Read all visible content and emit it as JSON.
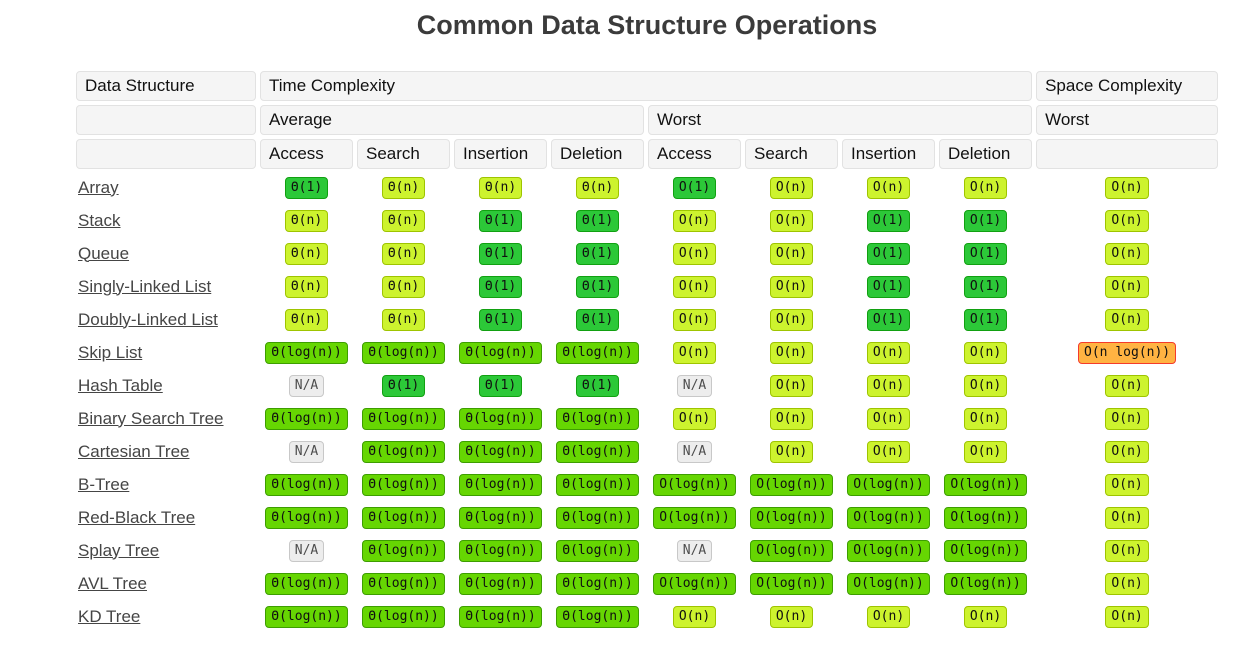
{
  "header": {
    "data_structure": "Data Structure",
    "time_complexity": "Time Complexity",
    "space_complexity": "Space Complexity",
    "average": "Average",
    "worst": "Worst",
    "space_worst": "Worst",
    "operations": [
      "Access",
      "Search",
      "Insertion",
      "Deletion"
    ]
  },
  "colors": {
    "green": {
      "bg": "#2CC838",
      "border": "#11A011",
      "text": "#101010"
    },
    "lightgreen": {
      "bg": "#66D602",
      "border": "#3D9E00",
      "text": "#101010"
    },
    "yellow": {
      "bg": "#CDF32E",
      "border": "#9EC400",
      "text": "#101010"
    },
    "orange": {
      "bg": "#FFB342",
      "border": "#F43B2B",
      "text": "#101010"
    },
    "gray": {
      "bg": "#EDEDED",
      "border": "#C8C8C8",
      "text": "#4D4D4D"
    }
  },
  "chart_data": {
    "type": "table",
    "title": "Common Data Structure Operations",
    "column_groups": [
      "Data Structure",
      "Time Complexity (Average: Access/Search/Insertion/Deletion, Worst: Access/Search/Insertion/Deletion)",
      "Space Complexity (Worst)"
    ],
    "rows": [
      {
        "name": "Array",
        "cells": [
          {
            "text": "Θ(1)",
            "level": "green"
          },
          {
            "text": "Θ(n)",
            "level": "yellow"
          },
          {
            "text": "Θ(n)",
            "level": "yellow"
          },
          {
            "text": "Θ(n)",
            "level": "yellow"
          },
          {
            "text": "O(1)",
            "level": "green"
          },
          {
            "text": "O(n)",
            "level": "yellow"
          },
          {
            "text": "O(n)",
            "level": "yellow"
          },
          {
            "text": "O(n)",
            "level": "yellow"
          },
          {
            "text": "O(n)",
            "level": "yellow"
          }
        ]
      },
      {
        "name": "Stack",
        "cells": [
          {
            "text": "Θ(n)",
            "level": "yellow"
          },
          {
            "text": "Θ(n)",
            "level": "yellow"
          },
          {
            "text": "Θ(1)",
            "level": "green"
          },
          {
            "text": "Θ(1)",
            "level": "green"
          },
          {
            "text": "O(n)",
            "level": "yellow"
          },
          {
            "text": "O(n)",
            "level": "yellow"
          },
          {
            "text": "O(1)",
            "level": "green"
          },
          {
            "text": "O(1)",
            "level": "green"
          },
          {
            "text": "O(n)",
            "level": "yellow"
          }
        ]
      },
      {
        "name": "Queue",
        "cells": [
          {
            "text": "Θ(n)",
            "level": "yellow"
          },
          {
            "text": "Θ(n)",
            "level": "yellow"
          },
          {
            "text": "Θ(1)",
            "level": "green"
          },
          {
            "text": "Θ(1)",
            "level": "green"
          },
          {
            "text": "O(n)",
            "level": "yellow"
          },
          {
            "text": "O(n)",
            "level": "yellow"
          },
          {
            "text": "O(1)",
            "level": "green"
          },
          {
            "text": "O(1)",
            "level": "green"
          },
          {
            "text": "O(n)",
            "level": "yellow"
          }
        ]
      },
      {
        "name": "Singly-Linked List",
        "cells": [
          {
            "text": "Θ(n)",
            "level": "yellow"
          },
          {
            "text": "Θ(n)",
            "level": "yellow"
          },
          {
            "text": "Θ(1)",
            "level": "green"
          },
          {
            "text": "Θ(1)",
            "level": "green"
          },
          {
            "text": "O(n)",
            "level": "yellow"
          },
          {
            "text": "O(n)",
            "level": "yellow"
          },
          {
            "text": "O(1)",
            "level": "green"
          },
          {
            "text": "O(1)",
            "level": "green"
          },
          {
            "text": "O(n)",
            "level": "yellow"
          }
        ]
      },
      {
        "name": "Doubly-Linked List",
        "cells": [
          {
            "text": "Θ(n)",
            "level": "yellow"
          },
          {
            "text": "Θ(n)",
            "level": "yellow"
          },
          {
            "text": "Θ(1)",
            "level": "green"
          },
          {
            "text": "Θ(1)",
            "level": "green"
          },
          {
            "text": "O(n)",
            "level": "yellow"
          },
          {
            "text": "O(n)",
            "level": "yellow"
          },
          {
            "text": "O(1)",
            "level": "green"
          },
          {
            "text": "O(1)",
            "level": "green"
          },
          {
            "text": "O(n)",
            "level": "yellow"
          }
        ]
      },
      {
        "name": "Skip List",
        "cells": [
          {
            "text": "Θ(log(n))",
            "level": "lightgreen"
          },
          {
            "text": "Θ(log(n))",
            "level": "lightgreen"
          },
          {
            "text": "Θ(log(n))",
            "level": "lightgreen"
          },
          {
            "text": "Θ(log(n))",
            "level": "lightgreen"
          },
          {
            "text": "O(n)",
            "level": "yellow"
          },
          {
            "text": "O(n)",
            "level": "yellow"
          },
          {
            "text": "O(n)",
            "level": "yellow"
          },
          {
            "text": "O(n)",
            "level": "yellow"
          },
          {
            "text": "O(n log(n))",
            "level": "orange"
          }
        ]
      },
      {
        "name": "Hash Table",
        "cells": [
          {
            "text": "N/A",
            "level": "gray"
          },
          {
            "text": "Θ(1)",
            "level": "green"
          },
          {
            "text": "Θ(1)",
            "level": "green"
          },
          {
            "text": "Θ(1)",
            "level": "green"
          },
          {
            "text": "N/A",
            "level": "gray"
          },
          {
            "text": "O(n)",
            "level": "yellow"
          },
          {
            "text": "O(n)",
            "level": "yellow"
          },
          {
            "text": "O(n)",
            "level": "yellow"
          },
          {
            "text": "O(n)",
            "level": "yellow"
          }
        ]
      },
      {
        "name": "Binary Search Tree",
        "cells": [
          {
            "text": "Θ(log(n))",
            "level": "lightgreen"
          },
          {
            "text": "Θ(log(n))",
            "level": "lightgreen"
          },
          {
            "text": "Θ(log(n))",
            "level": "lightgreen"
          },
          {
            "text": "Θ(log(n))",
            "level": "lightgreen"
          },
          {
            "text": "O(n)",
            "level": "yellow"
          },
          {
            "text": "O(n)",
            "level": "yellow"
          },
          {
            "text": "O(n)",
            "level": "yellow"
          },
          {
            "text": "O(n)",
            "level": "yellow"
          },
          {
            "text": "O(n)",
            "level": "yellow"
          }
        ]
      },
      {
        "name": "Cartesian Tree",
        "cells": [
          {
            "text": "N/A",
            "level": "gray"
          },
          {
            "text": "Θ(log(n))",
            "level": "lightgreen"
          },
          {
            "text": "Θ(log(n))",
            "level": "lightgreen"
          },
          {
            "text": "Θ(log(n))",
            "level": "lightgreen"
          },
          {
            "text": "N/A",
            "level": "gray"
          },
          {
            "text": "O(n)",
            "level": "yellow"
          },
          {
            "text": "O(n)",
            "level": "yellow"
          },
          {
            "text": "O(n)",
            "level": "yellow"
          },
          {
            "text": "O(n)",
            "level": "yellow"
          }
        ]
      },
      {
        "name": "B-Tree",
        "cells": [
          {
            "text": "Θ(log(n))",
            "level": "lightgreen"
          },
          {
            "text": "Θ(log(n))",
            "level": "lightgreen"
          },
          {
            "text": "Θ(log(n))",
            "level": "lightgreen"
          },
          {
            "text": "Θ(log(n))",
            "level": "lightgreen"
          },
          {
            "text": "O(log(n))",
            "level": "lightgreen"
          },
          {
            "text": "O(log(n))",
            "level": "lightgreen"
          },
          {
            "text": "O(log(n))",
            "level": "lightgreen"
          },
          {
            "text": "O(log(n))",
            "level": "lightgreen"
          },
          {
            "text": "O(n)",
            "level": "yellow"
          }
        ]
      },
      {
        "name": "Red-Black Tree",
        "cells": [
          {
            "text": "Θ(log(n))",
            "level": "lightgreen"
          },
          {
            "text": "Θ(log(n))",
            "level": "lightgreen"
          },
          {
            "text": "Θ(log(n))",
            "level": "lightgreen"
          },
          {
            "text": "Θ(log(n))",
            "level": "lightgreen"
          },
          {
            "text": "O(log(n))",
            "level": "lightgreen"
          },
          {
            "text": "O(log(n))",
            "level": "lightgreen"
          },
          {
            "text": "O(log(n))",
            "level": "lightgreen"
          },
          {
            "text": "O(log(n))",
            "level": "lightgreen"
          },
          {
            "text": "O(n)",
            "level": "yellow"
          }
        ]
      },
      {
        "name": "Splay Tree",
        "cells": [
          {
            "text": "N/A",
            "level": "gray"
          },
          {
            "text": "Θ(log(n))",
            "level": "lightgreen"
          },
          {
            "text": "Θ(log(n))",
            "level": "lightgreen"
          },
          {
            "text": "Θ(log(n))",
            "level": "lightgreen"
          },
          {
            "text": "N/A",
            "level": "gray"
          },
          {
            "text": "O(log(n))",
            "level": "lightgreen"
          },
          {
            "text": "O(log(n))",
            "level": "lightgreen"
          },
          {
            "text": "O(log(n))",
            "level": "lightgreen"
          },
          {
            "text": "O(n)",
            "level": "yellow"
          }
        ]
      },
      {
        "name": "AVL Tree",
        "cells": [
          {
            "text": "Θ(log(n))",
            "level": "lightgreen"
          },
          {
            "text": "Θ(log(n))",
            "level": "lightgreen"
          },
          {
            "text": "Θ(log(n))",
            "level": "lightgreen"
          },
          {
            "text": "Θ(log(n))",
            "level": "lightgreen"
          },
          {
            "text": "O(log(n))",
            "level": "lightgreen"
          },
          {
            "text": "O(log(n))",
            "level": "lightgreen"
          },
          {
            "text": "O(log(n))",
            "level": "lightgreen"
          },
          {
            "text": "O(log(n))",
            "level": "lightgreen"
          },
          {
            "text": "O(n)",
            "level": "yellow"
          }
        ]
      },
      {
        "name": "KD Tree",
        "cells": [
          {
            "text": "Θ(log(n))",
            "level": "lightgreen"
          },
          {
            "text": "Θ(log(n))",
            "level": "lightgreen"
          },
          {
            "text": "Θ(log(n))",
            "level": "lightgreen"
          },
          {
            "text": "Θ(log(n))",
            "level": "lightgreen"
          },
          {
            "text": "O(n)",
            "level": "yellow"
          },
          {
            "text": "O(n)",
            "level": "yellow"
          },
          {
            "text": "O(n)",
            "level": "yellow"
          },
          {
            "text": "O(n)",
            "level": "yellow"
          },
          {
            "text": "O(n)",
            "level": "yellow"
          }
        ]
      }
    ]
  }
}
